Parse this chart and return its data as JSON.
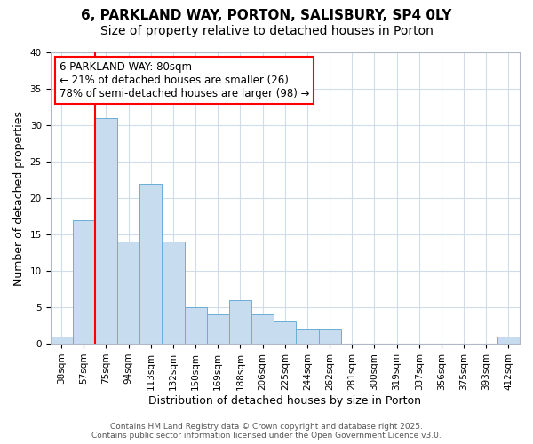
{
  "title_line1": "6, PARKLAND WAY, PORTON, SALISBURY, SP4 0LY",
  "title_line2": "Size of property relative to detached houses in Porton",
  "xlabel": "Distribution of detached houses by size in Porton",
  "ylabel": "Number of detached properties",
  "bar_color": "#c8dcf0",
  "bar_edge_color": "#6aaed6",
  "categories": [
    "38sqm",
    "57sqm",
    "75sqm",
    "94sqm",
    "113sqm",
    "132sqm",
    "150sqm",
    "169sqm",
    "188sqm",
    "206sqm",
    "225sqm",
    "244sqm",
    "262sqm",
    "281sqm",
    "300sqm",
    "319sqm",
    "337sqm",
    "356sqm",
    "375sqm",
    "393sqm",
    "412sqm"
  ],
  "values": [
    1,
    17,
    31,
    14,
    22,
    14,
    5,
    4,
    6,
    4,
    3,
    2,
    2,
    0,
    0,
    0,
    0,
    0,
    0,
    0,
    1
  ],
  "ylim": [
    0,
    40
  ],
  "yticks": [
    0,
    5,
    10,
    15,
    20,
    25,
    30,
    35,
    40
  ],
  "red_line_x": 1.5,
  "annotation_text": "6 PARKLAND WAY: 80sqm\n← 21% of detached houses are smaller (26)\n78% of semi-detached houses are larger (98) →",
  "background_color": "#ffffff",
  "grid_color": "#d0dce8",
  "footer_text": "Contains HM Land Registry data © Crown copyright and database right 2025.\nContains public sector information licensed under the Open Government Licence v3.0.",
  "title_fontsize": 11,
  "subtitle_fontsize": 10,
  "label_fontsize": 9,
  "tick_fontsize": 7.5,
  "annotation_fontsize": 8.5
}
